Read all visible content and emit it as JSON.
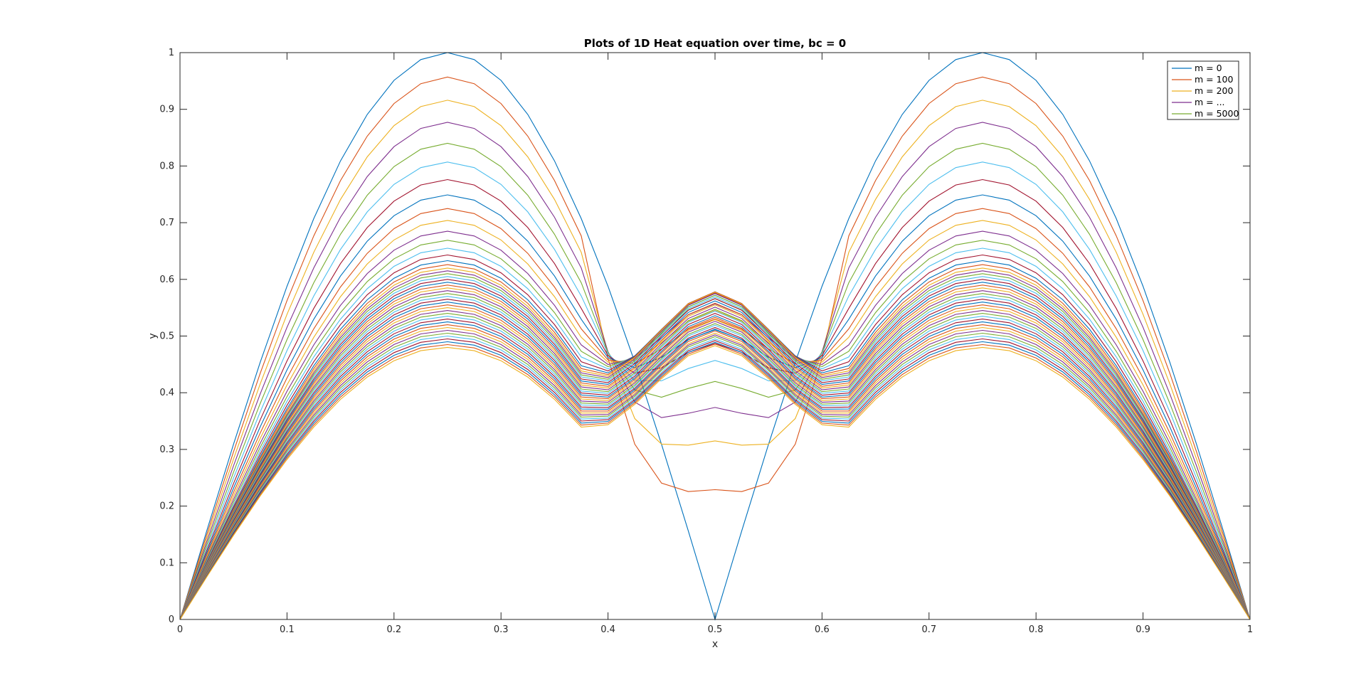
{
  "chart_data": {
    "type": "line",
    "title": "Plots of 1D Heat equation over time, bc = 0",
    "xlabel": "x",
    "ylabel": "y",
    "xlim": [
      0,
      1
    ],
    "ylim": [
      0,
      1
    ],
    "xticks": [
      "0",
      "0.1",
      "0.2",
      "0.3",
      "0.4",
      "0.5",
      "0.6",
      "0.7",
      "0.8",
      "0.9",
      "1"
    ],
    "yticks": [
      "0",
      "0.1",
      "0.2",
      "0.3",
      "0.4",
      "0.5",
      "0.6",
      "0.7",
      "0.8",
      "0.9",
      "1"
    ],
    "grid": false,
    "legend_position": "top-right",
    "legend": [
      "m = 0",
      "m = 100",
      "m = 200",
      "m = ...",
      "m = 5000"
    ],
    "colors": [
      "#0072BD",
      "#D95319",
      "#EDB120",
      "#7E2F8E",
      "#77AC30",
      "#4DBEEE",
      "#A2142F"
    ],
    "x": [
      0,
      0.025,
      0.05,
      0.075,
      0.1,
      0.125,
      0.15,
      0.175,
      0.2,
      0.225,
      0.25,
      0.275,
      0.3,
      0.325,
      0.35,
      0.375,
      0.4,
      0.425,
      0.45,
      0.475,
      0.5,
      0.525,
      0.55,
      0.575,
      0.6,
      0.625,
      0.65,
      0.675,
      0.7,
      0.725,
      0.75,
      0.775,
      0.8,
      0.825,
      0.85,
      0.875,
      0.9,
      0.925,
      0.95,
      0.975,
      1
    ],
    "series": [
      {
        "name": "m = 0",
        "peak": 1.0,
        "mid": 0.0
      },
      {
        "name": "m = 100",
        "peak": 0.957,
        "mid": 0.229
      },
      {
        "name": "m = 200",
        "peak": 0.916,
        "mid": 0.315
      },
      {
        "name": "m = ...",
        "peak": 0.877,
        "mid": 0.374
      },
      {
        "name": "m = 5000",
        "peak": 0.84,
        "mid": 0.42
      },
      {
        "peak": 0.807,
        "mid": 0.457
      },
      {
        "peak": 0.776,
        "mid": 0.487
      },
      {
        "peak": 0.749,
        "mid": 0.511
      },
      {
        "peak": 0.725,
        "mid": 0.53
      },
      {
        "peak": 0.704,
        "mid": 0.545
      },
      {
        "peak": 0.685,
        "mid": 0.557
      },
      {
        "peak": 0.669,
        "mid": 0.566
      },
      {
        "peak": 0.655,
        "mid": 0.572
      },
      {
        "peak": 0.643,
        "mid": 0.576
      },
      {
        "peak": 0.633,
        "mid": 0.578
      },
      {
        "peak": 0.626,
        "mid": 0.578
      },
      {
        "peak": 0.62,
        "mid": 0.577
      },
      {
        "peak": 0.615,
        "mid": 0.575
      },
      {
        "peak": 0.61,
        "mid": 0.572
      },
      {
        "peak": 0.605,
        "mid": 0.569
      },
      {
        "peak": 0.6,
        "mid": 0.566
      },
      {
        "peak": 0.595,
        "mid": 0.562
      },
      {
        "peak": 0.59,
        "mid": 0.558
      },
      {
        "peak": 0.585,
        "mid": 0.555
      },
      {
        "peak": 0.58,
        "mid": 0.551
      },
      {
        "peak": 0.575,
        "mid": 0.547
      },
      {
        "peak": 0.57,
        "mid": 0.544
      },
      {
        "peak": 0.565,
        "mid": 0.54
      },
      {
        "peak": 0.56,
        "mid": 0.536
      },
      {
        "peak": 0.555,
        "mid": 0.533
      },
      {
        "peak": 0.55,
        "mid": 0.529
      },
      {
        "peak": 0.545,
        "mid": 0.526
      },
      {
        "peak": 0.54,
        "mid": 0.522
      },
      {
        "peak": 0.535,
        "mid": 0.519
      },
      {
        "peak": 0.53,
        "mid": 0.515
      },
      {
        "peak": 0.525,
        "mid": 0.512
      },
      {
        "peak": 0.52,
        "mid": 0.509
      },
      {
        "peak": 0.515,
        "mid": 0.505
      },
      {
        "peak": 0.51,
        "mid": 0.502
      },
      {
        "peak": 0.505,
        "mid": 0.499
      },
      {
        "peak": 0.5,
        "mid": 0.495
      },
      {
        "peak": 0.495,
        "mid": 0.492
      },
      {
        "peak": 0.49,
        "mid": 0.489
      },
      {
        "peak": 0.485,
        "mid": 0.486
      },
      {
        "peak": 0.48,
        "mid": 0.483
      }
    ]
  }
}
